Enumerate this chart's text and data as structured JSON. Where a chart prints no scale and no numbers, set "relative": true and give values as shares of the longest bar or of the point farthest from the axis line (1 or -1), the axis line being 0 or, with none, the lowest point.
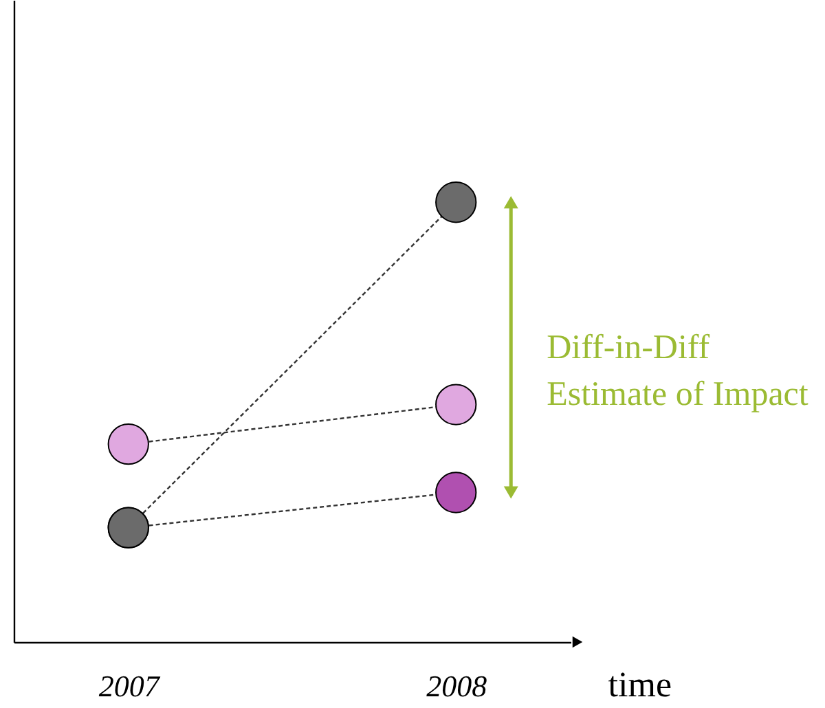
{
  "chart_data": {
    "type": "line",
    "relative": true,
    "categories": [
      "2007",
      "2008"
    ],
    "xlabel": "time",
    "marker": "circle",
    "line_style": "dashed",
    "series": [
      {
        "color": "#6b6b6b",
        "values": [
          0.26,
          1
        ]
      },
      {
        "color": "#e0a8e0",
        "values": [
          0.45,
          0.54
        ]
      },
      {
        "color": "#b050b0",
        "values": [
          0.26,
          0.34
        ]
      }
    ],
    "annotations": [
      "Diff-in-Diff\nEstimate of Impact"
    ]
  }
}
